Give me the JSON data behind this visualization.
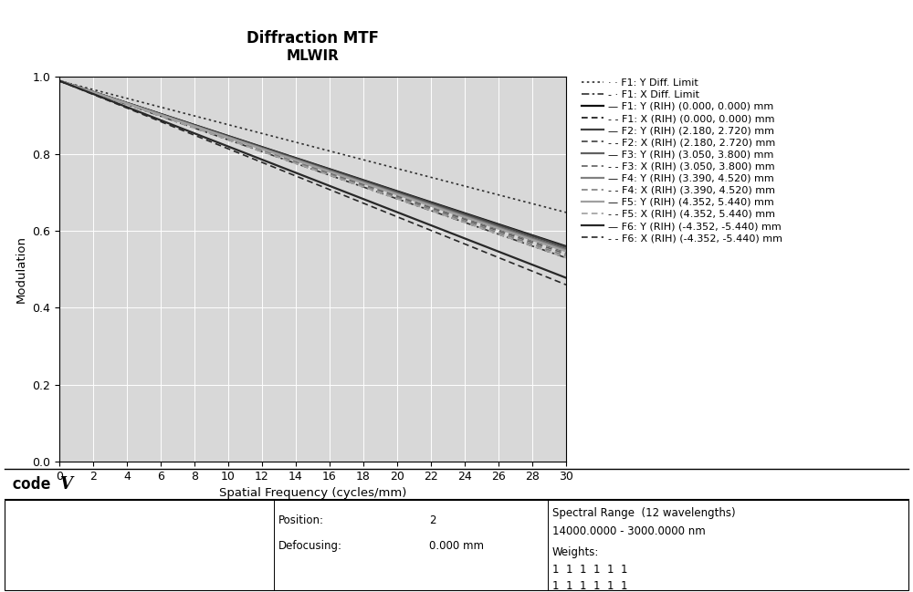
{
  "title_line1": "Diffraction MTF",
  "title_line2": "MLWIR",
  "xlabel": "Spatial Frequency (cycles/mm)",
  "ylabel": "Modulation",
  "xlim": [
    0,
    30
  ],
  "ylim": [
    0,
    1.0
  ],
  "xticks": [
    0,
    2,
    4,
    6,
    8,
    10,
    12,
    14,
    16,
    18,
    20,
    22,
    24,
    26,
    28,
    30
  ],
  "yticks": [
    0,
    0.2,
    0.4,
    0.6,
    0.8,
    1
  ],
  "plot_bg_color": "#d8d8d8",
  "outer_bg": "#ffffff",
  "legend_entries": [
    {
      "label": "· · F1: Y Diff. Limit",
      "ls": "dotted",
      "color": "#303030",
      "lw": 1.2
    },
    {
      "label": "- · F1: X Diff. Limit",
      "ls": "dashdot",
      "color": "#303030",
      "lw": 1.2
    },
    {
      "label": "— F1: Y (RIH) (0.000, 0.000) mm",
      "ls": "solid",
      "color": "#101010",
      "lw": 1.5
    },
    {
      "label": "- - F1: X (RIH) (0.000, 0.000) mm",
      "ls": "dashed",
      "color": "#101010",
      "lw": 1.2
    },
    {
      "label": "— F2: Y (RIH) (2.180, 2.720) mm",
      "ls": "solid",
      "color": "#404040",
      "lw": 1.5
    },
    {
      "label": "- - F2: X (RIH) (2.180, 2.720) mm",
      "ls": "dashed",
      "color": "#404040",
      "lw": 1.2
    },
    {
      "label": "— F3: Y (RIH) (3.050, 3.800) mm",
      "ls": "solid",
      "color": "#606060",
      "lw": 1.5
    },
    {
      "label": "- - F3: X (RIH) (3.050, 3.800) mm",
      "ls": "dashed",
      "color": "#606060",
      "lw": 1.2
    },
    {
      "label": "— F4: Y (RIH) (3.390, 4.520) mm",
      "ls": "solid",
      "color": "#808080",
      "lw": 1.5
    },
    {
      "label": "- - F4: X (RIH) (3.390, 4.520) mm",
      "ls": "dashed",
      "color": "#808080",
      "lw": 1.2
    },
    {
      "label": "— F5: Y (RIH) (4.352, 5.440) mm",
      "ls": "solid",
      "color": "#a0a0a0",
      "lw": 1.5
    },
    {
      "label": "- - F5: X (RIH) (4.352, 5.440) mm",
      "ls": "dashed",
      "color": "#a0a0a0",
      "lw": 1.2
    },
    {
      "label": "— F6: Y (RIH) (-4.352, -5.440) mm",
      "ls": "solid",
      "color": "#282828",
      "lw": 1.5
    },
    {
      "label": "- - F6: X (RIH) (-4.352, -5.440) mm",
      "ls": "dashed",
      "color": "#282828",
      "lw": 1.2
    }
  ],
  "curves": [
    {
      "end_val": 0.648,
      "ls": "dotted",
      "color": "#303030",
      "lw": 1.2
    },
    {
      "end_val": 0.53,
      "ls": "dashdot",
      "color": "#303030",
      "lw": 1.2
    },
    {
      "end_val": 0.56,
      "ls": "solid",
      "color": "#101010",
      "lw": 1.6
    },
    {
      "end_val": 0.55,
      "ls": "dashed",
      "color": "#101010",
      "lw": 1.2
    },
    {
      "end_val": 0.558,
      "ls": "solid",
      "color": "#404040",
      "lw": 1.6
    },
    {
      "end_val": 0.545,
      "ls": "dashed",
      "color": "#404040",
      "lw": 1.2
    },
    {
      "end_val": 0.553,
      "ls": "solid",
      "color": "#606060",
      "lw": 1.6
    },
    {
      "end_val": 0.54,
      "ls": "dashed",
      "color": "#606060",
      "lw": 1.2
    },
    {
      "end_val": 0.55,
      "ls": "solid",
      "color": "#808080",
      "lw": 1.6
    },
    {
      "end_val": 0.535,
      "ls": "dashed",
      "color": "#808080",
      "lw": 1.2
    },
    {
      "end_val": 0.547,
      "ls": "solid",
      "color": "#a0a0a0",
      "lw": 1.6
    },
    {
      "end_val": 0.53,
      "ls": "dashed",
      "color": "#a0a0a0",
      "lw": 1.2
    },
    {
      "end_val": 0.478,
      "ls": "solid",
      "color": "#282828",
      "lw": 1.6
    },
    {
      "end_val": 0.46,
      "ls": "dashed",
      "color": "#282828",
      "lw": 1.2
    }
  ]
}
